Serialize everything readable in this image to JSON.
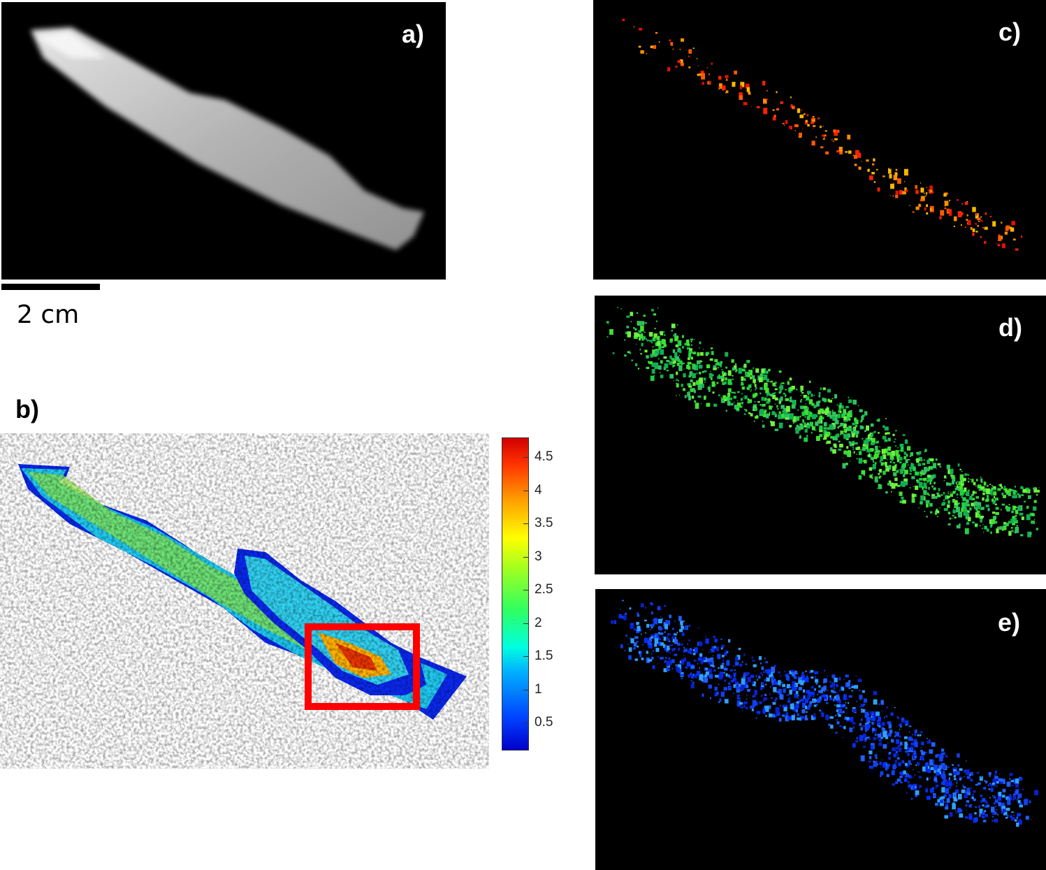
{
  "panels": {
    "a": {
      "label": "a)"
    },
    "b": {
      "label": "b)"
    },
    "c": {
      "label": "c)"
    },
    "d": {
      "label": "d)"
    },
    "e": {
      "label": "e)"
    }
  },
  "scale_bar": {
    "label": "2 cm"
  },
  "colorbar": {
    "ticks": [
      "4.5",
      "4",
      "3.5",
      "3",
      "2.5",
      "2",
      "1.5",
      "1",
      "0.5"
    ],
    "range": [
      0.1,
      4.8
    ],
    "colormap": "jet"
  },
  "highlight": {
    "color": "#ff0000"
  }
}
